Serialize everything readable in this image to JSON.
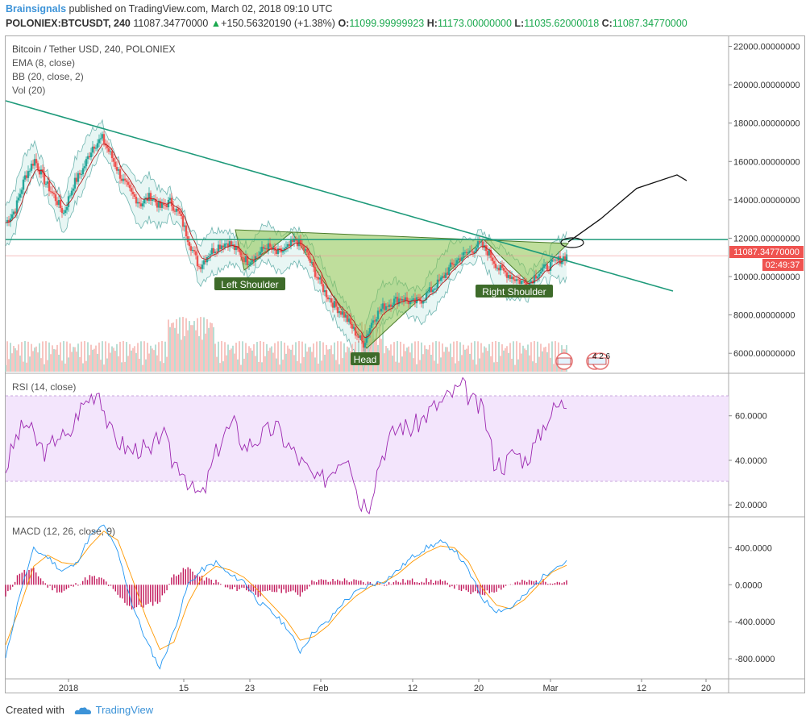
{
  "header": {
    "author": "Brainsignals",
    "published_text": "published on TradingView.com, March 02, 2018 09:10 UTC",
    "symbol": "POLONIEX:BTCUSDT, 240",
    "last": "11087.34770000",
    "change": "+150.56320190 (+1.38%)",
    "o_label": "O:",
    "o_value": "11099.99999923",
    "h_label": "H:",
    "h_value": "11173.00000000",
    "l_label": "L:",
    "l_value": "11035.62000018",
    "c_label": "C:",
    "c_value": "11087.34770000"
  },
  "legend": {
    "main_title": "Bitcoin / Tether USD, 240, POLONIEX",
    "ema": "EMA (8, close)",
    "bb": "BB (20, close, 2)",
    "vol": "Vol (20)",
    "rsi": "RSI (14, close)",
    "macd": "MACD (12, 26, close, 9)"
  },
  "price_badges": {
    "last_price": "11087.34770000",
    "countdown": "02:49:37"
  },
  "annotations": {
    "left_shoulder": "Left Shoulder",
    "head": "Head",
    "right_shoulder": "Right Shoulder"
  },
  "footer": {
    "created_with": "Created with",
    "brand": "TradingView"
  },
  "colors": {
    "up": "#26a69a",
    "down": "#ef5350",
    "trendline": "#1e9a7a",
    "pattern_fill": "#8bc34a",
    "rsi_line": "#9c27b0",
    "rsi_band": "#f3e5fc",
    "macd_line": "#2196f3",
    "signal_line": "#ff9800",
    "histogram": "#c2185b",
    "last_badge": "#ef5350"
  },
  "chart_data": [
    {
      "type": "line",
      "subtype": "candlestick-approx",
      "panel": "price",
      "y_ticks": [
        "22000.00000000",
        "20000.00000000",
        "18000.00000000",
        "16000.00000000",
        "14000.00000000",
        "12000.00000000",
        "10000.00000000",
        "8000.00000000",
        "6000.00000000"
      ],
      "ylim": [
        5000,
        22400
      ],
      "x_ticks": [
        "2018",
        "15",
        "23",
        "Feb",
        "12",
        "20",
        "Mar",
        "12",
        "20"
      ],
      "series": [
        {
          "values": [
            12800,
            13500,
            15200,
            16100,
            15000,
            14200,
            13300,
            14800,
            15600,
            16800,
            17200,
            16200,
            15100,
            14300,
            13800,
            14200,
            13600,
            13900,
            13200,
            11800,
            10500,
            11200,
            11600,
            11800,
            11300,
            10800,
            11100,
            11600,
            11200,
            11400,
            11900,
            11300,
            10200,
            9200,
            8500,
            8000,
            7200,
            6500,
            7800,
            8400,
            8700,
            8900,
            8600,
            8800,
            9300,
            9800,
            10500,
            11000,
            11300,
            11700,
            11200,
            10400,
            10100,
            9800,
            9600,
            10200,
            10500,
            10800,
            11087
          ]
        }
      ],
      "projection": [
        11800,
        13000,
        14600,
        15300,
        15000
      ],
      "horizontal_line": 11930,
      "trendline": [
        [
          0,
          19000
        ],
        [
          1,
          9000
        ]
      ]
    },
    {
      "type": "line",
      "panel": "rsi",
      "y_ticks": [
        "60.0000",
        "40.0000",
        "20.0000"
      ],
      "ylim": [
        15,
        78
      ],
      "band": [
        30,
        70
      ],
      "series": [
        {
          "values": [
            36,
            50,
            57,
            48,
            43,
            52,
            49,
            62,
            68,
            72,
            53,
            48,
            44,
            46,
            42,
            54,
            40,
            37,
            26,
            24,
            40,
            52,
            56,
            46,
            49,
            52,
            55,
            48,
            42,
            36,
            30,
            33,
            40,
            44,
            22,
            21,
            40,
            50,
            56,
            54,
            58,
            63,
            66,
            70,
            73,
            66,
            62,
            40,
            38,
            44,
            40,
            47,
            58,
            64,
            66
          ]
        }
      ]
    },
    {
      "type": "line",
      "panel": "macd",
      "y_ticks": [
        "400.0000",
        "0.0000",
        "-400.0000",
        "-800.0000"
      ],
      "ylim": [
        -1000,
        700
      ],
      "series": [
        {
          "values": [
            -800,
            -100,
            380,
            300,
            150,
            220,
            520,
            640,
            350,
            -200,
            -600,
            -900,
            -500,
            0,
            160,
            240,
            100,
            40,
            -180,
            -300,
            -450,
            -720,
            -500,
            -400,
            -200,
            -80,
            0,
            40,
            160,
            300,
            400,
            460,
            380,
            150,
            -150,
            -280,
            -250,
            -120,
            40,
            180,
            240
          ]
        },
        {
          "values": [
            -650,
            -250,
            200,
            320,
            240,
            220,
            420,
            580,
            480,
            80,
            -350,
            -700,
            -620,
            -200,
            80,
            200,
            160,
            80,
            -60,
            -220,
            -380,
            -600,
            -560,
            -440,
            -260,
            -120,
            -20,
            30,
            120,
            250,
            350,
            420,
            400,
            250,
            -40,
            -220,
            -260,
            -160,
            0,
            140,
            210
          ]
        }
      ]
    }
  ]
}
